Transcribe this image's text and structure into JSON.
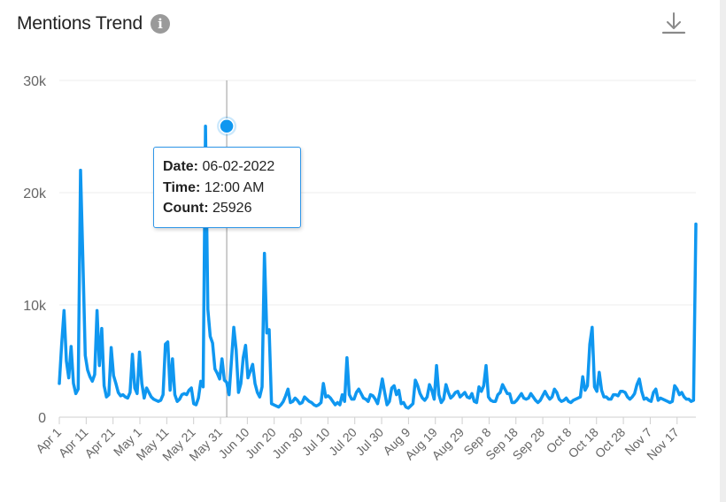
{
  "header": {
    "title": "Mentions Trend",
    "info_icon": "info-icon",
    "download_icon": "download-icon"
  },
  "tooltip": {
    "date_label": "Date:",
    "date_value": "06-02-2022",
    "time_label": "Time:",
    "time_value": "12:00 AM",
    "count_label": "Count:",
    "count_value": "25926"
  },
  "chart_data": {
    "type": "line",
    "title": "Mentions Trend",
    "xlabel": "",
    "ylabel": "",
    "ylim": [
      0,
      30000
    ],
    "yticks": [
      0,
      10000,
      20000,
      30000
    ],
    "ytick_labels": [
      "0",
      "10k",
      "20k",
      "30k"
    ],
    "x_start": "2022-04-01",
    "x_end": "2022-11-24",
    "xtick_labels": [
      "Apr 1",
      "Apr 11",
      "Apr 21",
      "May 1",
      "May 11",
      "May 21",
      "May 31",
      "Jun 10",
      "Jun 20",
      "Jun 30",
      "Jul 10",
      "Jul 20",
      "Jul 30",
      "Aug 9",
      "Aug 19",
      "Aug 29",
      "Sep 8",
      "Sep 18",
      "Sep 28",
      "Oct 8",
      "Oct 18",
      "Oct 28",
      "Nov 7",
      "Nov 17"
    ],
    "grid": true,
    "line_color": "#0f97f0",
    "highlight": {
      "x": "2022-06-02",
      "y": 25926
    },
    "series": [
      {
        "values": [
          3000,
          6500,
          9500,
          5000,
          3500,
          6300,
          3000,
          2100,
          2500,
          22000,
          14000,
          5500,
          4200,
          3600,
          3200,
          3800,
          9500,
          4600,
          7900,
          2800,
          1800,
          2000,
          6200,
          3700,
          3000,
          2200,
          1900,
          2000,
          1800,
          1700,
          2200,
          5600,
          2600,
          2100,
          5800,
          3000,
          1700,
          2600,
          2200,
          1800,
          1600,
          1500,
          1400,
          1500,
          2000,
          6500,
          6700,
          2400,
          5200,
          2000,
          1400,
          1600,
          2000,
          2100,
          2000,
          2400,
          2600,
          1200,
          1100,
          1700,
          3200,
          2700,
          25926,
          9600,
          7200,
          6600,
          4300,
          3900,
          3400,
          5200,
          3300,
          3100,
          2000,
          5000,
          8000,
          6000,
          2200,
          3000,
          5300,
          6400,
          3500,
          4100,
          4700,
          3000,
          2200,
          1800,
          2700,
          14600,
          7500,
          7800,
          1200,
          1100,
          1000,
          900,
          1100,
          1400,
          1900,
          2500,
          1300,
          1400,
          1700,
          1500,
          1200,
          1300,
          1800,
          1600,
          1400,
          1300,
          1100,
          1000,
          1100,
          1300,
          3000,
          1800,
          1900,
          1700,
          1400,
          1100,
          1300,
          1100,
          2000,
          1400,
          5300,
          2000,
          1600,
          1600,
          2200,
          2500,
          2100,
          1700,
          1600,
          1400,
          2000,
          1900,
          1600,
          1200,
          2200,
          3400,
          2200,
          1100,
          1400,
          2600,
          2800,
          2000,
          2400,
          1200,
          1300,
          900,
          800,
          1000,
          1200,
          3300,
          2800,
          2100,
          1700,
          1500,
          1800,
          2900,
          2400,
          1600,
          4600,
          2000,
          1300,
          1600,
          2900,
          2200,
          1700,
          1900,
          2200,
          2300,
          1800,
          2000,
          2200,
          1800,
          1700,
          2100,
          1400,
          1300,
          2700,
          2300,
          2800,
          4600,
          1800,
          1500,
          1400,
          1400,
          2000,
          2200,
          2900,
          2500,
          2100,
          2100,
          1300,
          1300,
          1500,
          1800,
          2100,
          1700,
          1600,
          1700,
          2100,
          1800,
          1500,
          1300,
          1500,
          1900,
          2300,
          1900,
          1600,
          1800,
          2500,
          2200,
          1600,
          1400,
          1500,
          1700,
          1400,
          1300,
          1500,
          1600,
          1700,
          1800,
          3600,
          2400,
          2800,
          6500,
          8000,
          2700,
          2300,
          4000,
          2400,
          1800,
          1800,
          1600,
          1600,
          2000,
          2000,
          1900,
          2300,
          2300,
          2200,
          1800,
          1600,
          1800,
          2100,
          2900,
          3400,
          2300,
          1600,
          1700,
          1500,
          1400,
          2200,
          2500,
          1500,
          1700,
          1600,
          1500,
          1400,
          1300,
          1400,
          2800,
          2500,
          2000,
          2200,
          1800,
          1600,
          1600,
          1400,
          1500,
          17200
        ]
      }
    ]
  }
}
